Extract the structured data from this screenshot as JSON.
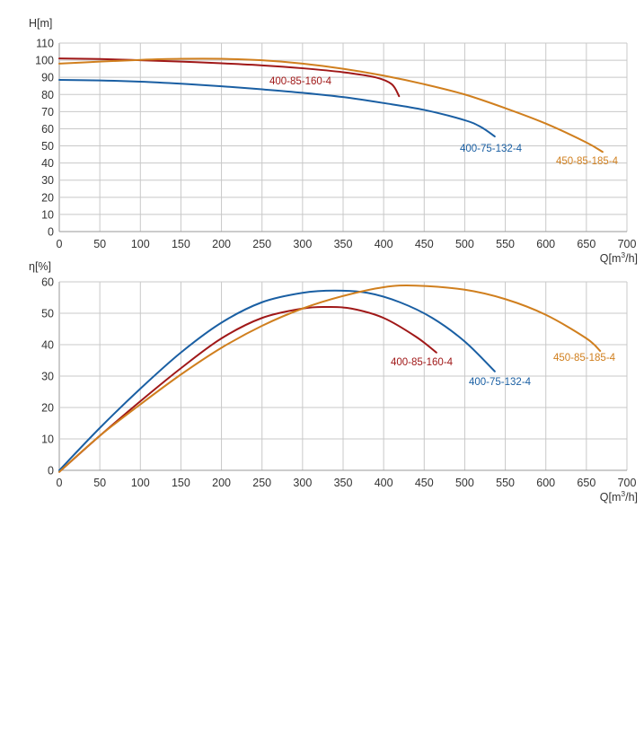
{
  "colors": {
    "grid": "#c8c8c8",
    "axis": "#9a9a9a",
    "text": "#333333",
    "series_400_85_160_4": "#a01818",
    "series_400_75_132_4": "#1a5fa3",
    "series_450_85_185_4": "#d07f1e"
  },
  "chart_data": [
    {
      "type": "line",
      "ylabel": "H[m]",
      "xlabel": "Q[m3/h]",
      "xlabel_parts": {
        "main": "Q[m",
        "sup": "3",
        "tail": "/h]"
      },
      "xlim": [
        0,
        700
      ],
      "ylim": [
        0,
        110
      ],
      "xticks": [
        0,
        50,
        100,
        150,
        200,
        250,
        300,
        350,
        400,
        450,
        500,
        550,
        600,
        650,
        700
      ],
      "yticks": [
        0,
        10,
        20,
        30,
        40,
        50,
        60,
        70,
        80,
        90,
        100,
        110
      ],
      "grid": true,
      "series": [
        {
          "name": "400-85-160-4",
          "color": "#a01818",
          "points": [
            [
              0,
              101
            ],
            [
              50,
              100.7
            ],
            [
              100,
              100
            ],
            [
              150,
              99.2
            ],
            [
              200,
              98.2
            ],
            [
              250,
              97
            ],
            [
              300,
              95.3
            ],
            [
              350,
              93
            ],
            [
              390,
              90
            ],
            [
              410,
              86
            ],
            [
              419,
              79
            ]
          ]
        },
        {
          "name": "400-75-132-4",
          "color": "#1a5fa3",
          "points": [
            [
              0,
              88.5
            ],
            [
              50,
              88.2
            ],
            [
              100,
              87.5
            ],
            [
              150,
              86.3
            ],
            [
              200,
              84.8
            ],
            [
              250,
              83
            ],
            [
              300,
              81
            ],
            [
              350,
              78.5
            ],
            [
              400,
              75
            ],
            [
              450,
              71
            ],
            [
              500,
              65
            ],
            [
              520,
              61
            ],
            [
              537,
              55.5
            ]
          ]
        },
        {
          "name": "450-85-185-4",
          "color": "#d07f1e",
          "points": [
            [
              0,
              98
            ],
            [
              50,
              99.2
            ],
            [
              100,
              100.2
            ],
            [
              150,
              100.8
            ],
            [
              200,
              100.8
            ],
            [
              250,
              100
            ],
            [
              300,
              98
            ],
            [
              350,
              95
            ],
            [
              400,
              91
            ],
            [
              450,
              86
            ],
            [
              500,
              80
            ],
            [
              550,
              72
            ],
            [
              600,
              63
            ],
            [
              650,
              52
            ],
            [
              670,
              46.5
            ]
          ]
        }
      ]
    },
    {
      "type": "line",
      "ylabel": "η[%]",
      "xlabel": "Q[m3/h]",
      "xlabel_parts": {
        "main": "Q[m",
        "sup": "3",
        "tail": "/h]"
      },
      "xlim": [
        0,
        700
      ],
      "ylim": [
        0,
        60
      ],
      "xticks": [
        0,
        50,
        100,
        150,
        200,
        250,
        300,
        350,
        400,
        450,
        500,
        550,
        600,
        650,
        700
      ],
      "yticks": [
        0,
        10,
        20,
        30,
        40,
        50,
        60
      ],
      "grid": true,
      "series": [
        {
          "name": "400-85-160-4",
          "color": "#a01818",
          "points": [
            [
              0,
              -0.5
            ],
            [
              50,
              11
            ],
            [
              100,
              22
            ],
            [
              150,
              32.5
            ],
            [
              200,
              42
            ],
            [
              250,
              48.5
            ],
            [
              300,
              51.5
            ],
            [
              330,
              52
            ],
            [
              360,
              51.5
            ],
            [
              400,
              48.5
            ],
            [
              440,
              42.5
            ],
            [
              465,
              37.5
            ]
          ]
        },
        {
          "name": "400-75-132-4",
          "color": "#1a5fa3",
          "points": [
            [
              0,
              0
            ],
            [
              50,
              13.5
            ],
            [
              100,
              26
            ],
            [
              150,
              37.5
            ],
            [
              200,
              47
            ],
            [
              250,
              53.5
            ],
            [
              300,
              56.5
            ],
            [
              340,
              57.2
            ],
            [
              380,
              56.5
            ],
            [
              420,
              53.5
            ],
            [
              460,
              48.5
            ],
            [
              500,
              41
            ],
            [
              537,
              31.5
            ]
          ]
        },
        {
          "name": "450-85-185-4",
          "color": "#d07f1e",
          "points": [
            [
              0,
              -0.5
            ],
            [
              50,
              11
            ],
            [
              100,
              21
            ],
            [
              150,
              30.5
            ],
            [
              200,
              39
            ],
            [
              250,
              46
            ],
            [
              300,
              51.5
            ],
            [
              350,
              55.5
            ],
            [
              400,
              58.3
            ],
            [
              440,
              58.8
            ],
            [
              500,
              57.5
            ],
            [
              550,
              54.5
            ],
            [
              600,
              49.5
            ],
            [
              650,
              42
            ],
            [
              667,
              38
            ]
          ]
        }
      ]
    }
  ]
}
